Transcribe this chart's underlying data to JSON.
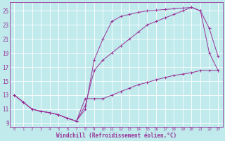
{
  "xlabel": "Windchill (Refroidissement éolien,°C)",
  "bg_color": "#c0eaec",
  "line_color": "#993399",
  "grid_color": "#ffffff",
  "xlim": [
    -0.5,
    23.5
  ],
  "ylim": [
    8.5,
    26.2
  ],
  "yticks": [
    9,
    11,
    13,
    15,
    17,
    19,
    21,
    23,
    25
  ],
  "xticks": [
    0,
    1,
    2,
    3,
    4,
    5,
    6,
    7,
    8,
    9,
    10,
    11,
    12,
    13,
    14,
    15,
    16,
    17,
    18,
    19,
    20,
    21,
    22,
    23
  ],
  "curve1_x": [
    0,
    1,
    2,
    3,
    4,
    5,
    6,
    7,
    8,
    9,
    10,
    11,
    12,
    13,
    14,
    15,
    16,
    17,
    18,
    19,
    20,
    21,
    22,
    23
  ],
  "curve1_y": [
    13,
    12,
    11,
    10.7,
    10.5,
    10.2,
    9.7,
    9.3,
    11.0,
    18.0,
    21.0,
    23.5,
    24.2,
    24.5,
    24.8,
    25.0,
    25.1,
    25.2,
    25.3,
    25.4,
    25.5,
    25.0,
    22.5,
    18.5
  ],
  "curve2_x": [
    0,
    1,
    2,
    3,
    4,
    5,
    6,
    7,
    8,
    9,
    10,
    11,
    12,
    13,
    14,
    15,
    16,
    17,
    18,
    19,
    20,
    21,
    22,
    23
  ],
  "curve2_y": [
    13,
    12,
    11,
    10.7,
    10.5,
    10.2,
    9.7,
    9.3,
    11.5,
    16.5,
    18.0,
    19.0,
    20.0,
    21.0,
    22.0,
    23.0,
    23.5,
    24.0,
    24.5,
    25.0,
    25.5,
    25.0,
    19.0,
    16.5
  ],
  "curve3_x": [
    0,
    1,
    2,
    3,
    4,
    5,
    6,
    7,
    8,
    9,
    10,
    11,
    12,
    13,
    14,
    15,
    16,
    17,
    18,
    19,
    20,
    21,
    22,
    23
  ],
  "curve3_y": [
    13,
    12,
    11,
    10.7,
    10.5,
    10.2,
    9.7,
    9.3,
    12.5,
    12.5,
    12.5,
    13.0,
    13.5,
    14.0,
    14.5,
    14.8,
    15.2,
    15.5,
    15.8,
    16.0,
    16.2,
    16.5,
    16.5,
    16.5
  ]
}
